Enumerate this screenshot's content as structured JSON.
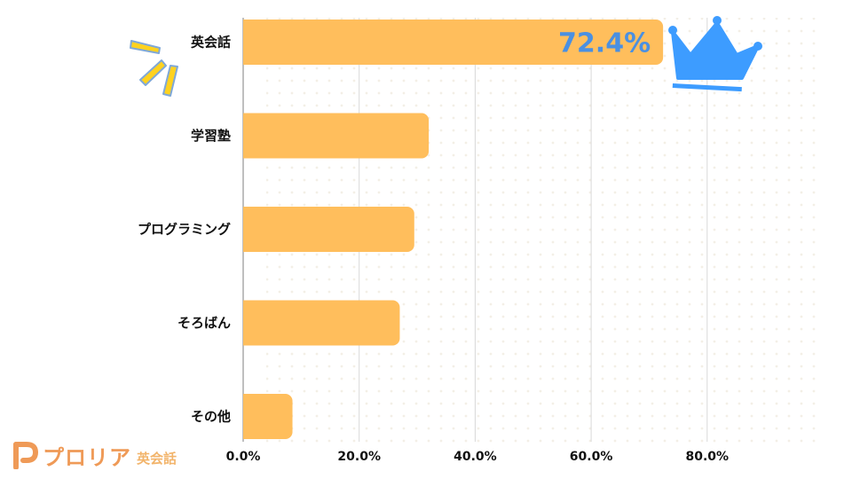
{
  "chart_data": {
    "type": "bar",
    "orientation": "horizontal",
    "categories": [
      "英会話",
      "学習塾",
      "プログラミング",
      "そろばん",
      "その他"
    ],
    "values": [
      72.4,
      32.0,
      29.5,
      27.0,
      8.5
    ],
    "xlim": [
      0,
      80
    ],
    "xticks": [
      "0.0%",
      "20.0%",
      "40.0%",
      "60.0%",
      "80.0%"
    ],
    "highlight_label": "72.4%",
    "grid": "vertical",
    "bar_color": "#ffbe5c",
    "highlight_color": "#4a90e2"
  },
  "logo": {
    "name": "プロリア",
    "sub": "英会話",
    "color": "#ef9a57"
  },
  "decorations": {
    "crown": "crown-icon",
    "sparkle": "sparkle-icon",
    "crown_color": "#3d9cff",
    "sparkle_color": "#ffd21f"
  }
}
